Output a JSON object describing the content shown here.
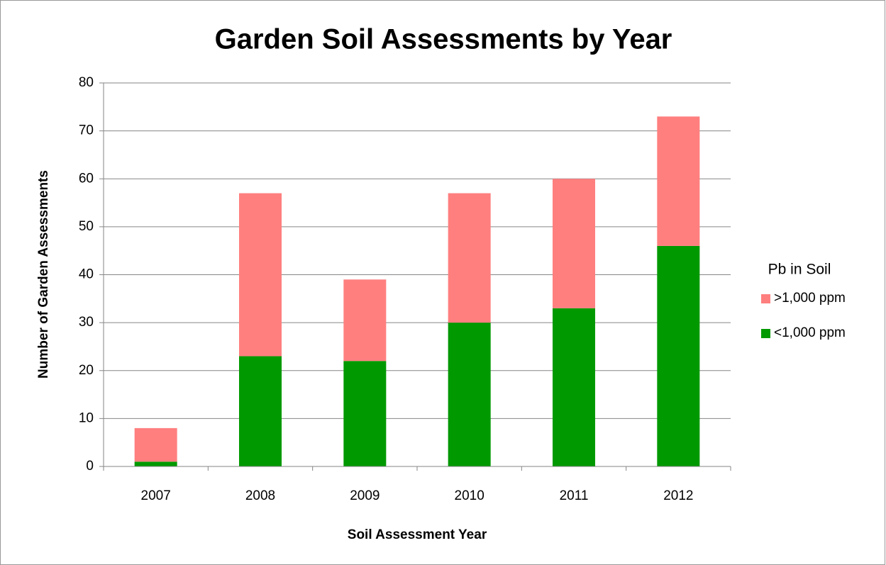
{
  "chart_data": {
    "type": "stacked_bar",
    "title": "Garden Soil Assessments by Year",
    "x_label": "Soil Assessment Year",
    "y_label": "Number of Garden Assessments",
    "legend_title": "Pb in Soil",
    "categories": [
      "2007",
      "2008",
      "2009",
      "2010",
      "2011",
      "2012"
    ],
    "series": [
      {
        "name": "<1,000 ppm",
        "color": "#009900",
        "values": [
          1,
          23,
          22,
          30,
          33,
          46
        ]
      },
      {
        "name": ">1,000 ppm",
        "color": "#ff7f7f",
        "values": [
          7,
          34,
          17,
          27,
          27,
          27
        ]
      }
    ],
    "ylim": [
      0,
      80
    ],
    "yticks": [
      0,
      10,
      20,
      30,
      40,
      50,
      60,
      70,
      80
    ],
    "grid": true,
    "legend": "right"
  }
}
